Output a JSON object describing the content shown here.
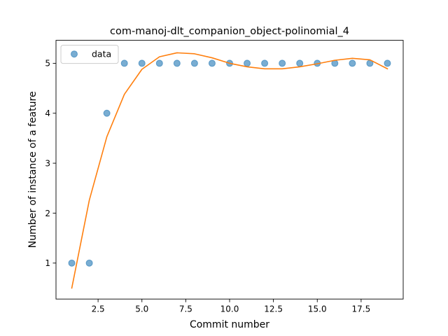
{
  "chart_data": {
    "type": "scatter",
    "title": "com-manoj-dlt_companion_object-polinomial_4",
    "xlabel": "Commit number",
    "ylabel": "Number of instance of a feature",
    "xlim": [
      0.1,
      19.9
    ],
    "ylim": [
      0.28,
      5.46
    ],
    "xticks": [
      2.5,
      5.0,
      7.5,
      10.0,
      12.5,
      15.0,
      17.5
    ],
    "xtick_labels": [
      "2.5",
      "5.0",
      "7.5",
      "10.0",
      "12.5",
      "15.0",
      "17.5"
    ],
    "yticks": [
      1,
      2,
      3,
      4,
      5
    ],
    "ytick_labels": [
      "1",
      "2",
      "3",
      "4",
      "5"
    ],
    "legend_position": "upper-left",
    "grid": false,
    "series": [
      {
        "name": "data",
        "kind": "scatter",
        "color": "#1f77b4",
        "x": [
          1,
          2,
          3,
          4,
          5,
          6,
          7,
          8,
          9,
          10,
          11,
          12,
          13,
          14,
          15,
          16,
          17,
          18,
          19
        ],
        "y": [
          1,
          1,
          4,
          5,
          5,
          5,
          5,
          5,
          5,
          5,
          5,
          5,
          5,
          5,
          5,
          5,
          5,
          5,
          5
        ]
      },
      {
        "kind": "line",
        "color": "#ff7f0e",
        "x": [
          1,
          2,
          3,
          4,
          5,
          6,
          7,
          8,
          9,
          10,
          11,
          12,
          13,
          14,
          15,
          16,
          17,
          18,
          19
        ],
        "y": [
          0.5,
          2.26,
          3.53,
          4.38,
          4.88,
          5.13,
          5.21,
          5.19,
          5.11,
          5.0,
          4.93,
          4.89,
          4.89,
          4.93,
          4.99,
          5.06,
          5.1,
          5.07,
          4.89
        ]
      }
    ]
  }
}
